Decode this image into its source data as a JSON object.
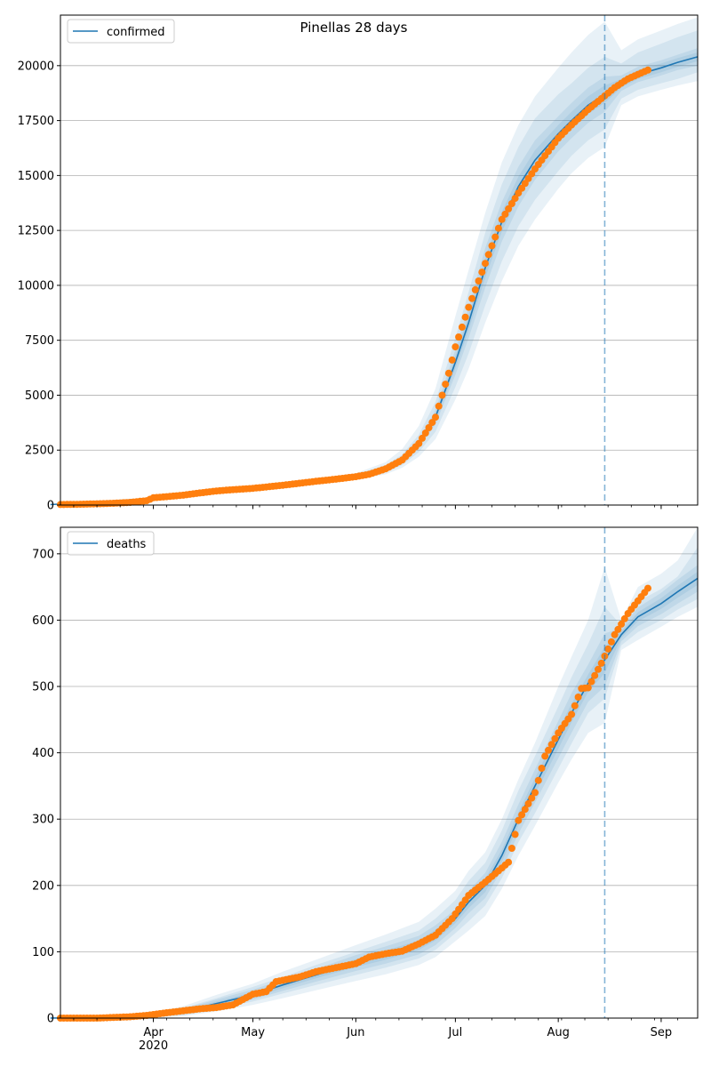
{
  "figure": {
    "title": "Pinellas 28 days"
  },
  "chart_data": [
    {
      "type": "line",
      "panel": "top",
      "legend": {
        "label": "confirmed",
        "placement": "top-left"
      },
      "ylim": [
        0,
        22300
      ],
      "yticks": [
        0,
        2500,
        5000,
        7500,
        10000,
        12500,
        15000,
        17500,
        20000
      ],
      "ytick_labels": [
        "0",
        "2500",
        "5000",
        "7500",
        "10000",
        "12500",
        "15000",
        "17500",
        "20000"
      ],
      "grid": "horizontal",
      "forecast_start": "2020-08-15",
      "observed": {
        "color": "#ff7f0e",
        "x": [
          "2020-03-01",
          "2020-03-05",
          "2020-03-10",
          "2020-03-15",
          "2020-03-20",
          "2020-03-25",
          "2020-03-30",
          "2020-04-01",
          "2020-04-05",
          "2020-04-10",
          "2020-04-15",
          "2020-04-20",
          "2020-04-25",
          "2020-05-01",
          "2020-05-10",
          "2020-05-20",
          "2020-05-25",
          "2020-06-01",
          "2020-06-05",
          "2020-06-10",
          "2020-06-15",
          "2020-06-20",
          "2020-06-25",
          "2020-06-29",
          "2020-07-01",
          "2020-07-05",
          "2020-07-10",
          "2020-07-15",
          "2020-07-20",
          "2020-07-25",
          "2020-08-01",
          "2020-08-05",
          "2020-08-10",
          "2020-08-14",
          "2020-08-18",
          "2020-08-22",
          "2020-08-28"
        ],
        "y": [
          20,
          25,
          35,
          55,
          80,
          120,
          200,
          330,
          380,
          450,
          550,
          640,
          700,
          760,
          900,
          1080,
          1160,
          1290,
          1400,
          1650,
          2050,
          2800,
          4000,
          6000,
          7200,
          9000,
          11000,
          13000,
          14200,
          15300,
          16700,
          17300,
          18000,
          18500,
          19000,
          19400,
          19800
        ]
      },
      "forecast": {
        "color": "#1f77b4",
        "x": [
          "2020-03-01",
          "2020-04-01",
          "2020-05-01",
          "2020-06-01",
          "2020-06-10",
          "2020-06-15",
          "2020-06-20",
          "2020-06-25",
          "2020-07-01",
          "2020-07-05",
          "2020-07-10",
          "2020-07-15",
          "2020-07-20",
          "2020-07-25",
          "2020-08-01",
          "2020-08-05",
          "2020-08-10",
          "2020-08-15",
          "2020-08-20",
          "2020-08-25",
          "2020-09-01",
          "2020-09-06",
          "2020-09-12"
        ],
        "y": [
          20,
          300,
          760,
          1290,
          1650,
          2050,
          2800,
          4000,
          6500,
          8300,
          10800,
          12900,
          14500,
          15700,
          16900,
          17500,
          18200,
          18700,
          19200,
          19600,
          19900,
          20150,
          20400
        ],
        "bands": [
          {
            "opacity": 0.1,
            "lower": [
              0,
              250,
              700,
              1150,
              1400,
              1700,
              2200,
              3000,
              4800,
              6200,
              8300,
              10200,
              11800,
              13000,
              14400,
              15100,
              15800,
              16300,
              18200,
              18600,
              18900,
              19100,
              19300
            ],
            "upper": [
              40,
              350,
              820,
              1450,
              1950,
              2550,
              3600,
              5300,
              8600,
              10700,
              13300,
              15600,
              17300,
              18600,
              19900,
              20600,
              21400,
              22000,
              20700,
              21200,
              21600,
              21900,
              22200
            ]
          },
          {
            "opacity": 0.1,
            "lower": [
              5,
              265,
              715,
              1190,
              1480,
              1820,
              2410,
              3340,
              5370,
              6900,
              9100,
              11100,
              12700,
              13900,
              15200,
              15900,
              16600,
              17100,
              18500,
              18900,
              19200,
              19400,
              19700
            ],
            "upper": [
              35,
              335,
              805,
              1390,
              1820,
              2300,
              3200,
              4700,
              7600,
              9700,
              12400,
              14600,
              16300,
              17600,
              18700,
              19200,
              19900,
              20400,
              20100,
              20600,
              21000,
              21300,
              21600
            ]
          },
          {
            "opacity": 0.1,
            "lower": [
              10,
              280,
              730,
              1230,
              1560,
              1930,
              2620,
              3670,
              5930,
              7600,
              9900,
              12000,
              13600,
              14800,
              16100,
              16700,
              17400,
              17900,
              18850,
              19250,
              19550,
              19800,
              20000
            ],
            "upper": [
              30,
              320,
              790,
              1350,
              1740,
              2170,
              2980,
              4330,
              7070,
              9000,
              11700,
              13800,
              15400,
              16600,
              17700,
              18300,
              19000,
              19500,
              19550,
              19950,
              20250,
              20500,
              20800
            ]
          },
          {
            "opacity": 0.1,
            "lower": [
              15,
              290,
              745,
              1260,
              1610,
              1990,
              2710,
              3835,
              6215,
              7950,
              10350,
              12450,
              14050,
              15250,
              16500,
              17100,
              17800,
              18300,
              19000,
              19400,
              19700,
              19950,
              20200
            ],
            "upper": [
              25,
              310,
              775,
              1320,
              1690,
              2110,
              2890,
              4165,
              6785,
              8650,
              11250,
              13350,
              14950,
              16150,
              17300,
              17900,
              18600,
              19100,
              19400,
              19800,
              20100,
              20350,
              20600
            ]
          }
        ]
      }
    },
    {
      "type": "line",
      "panel": "bottom",
      "legend": {
        "label": "deaths",
        "placement": "top-left"
      },
      "ylim": [
        0,
        740
      ],
      "yticks": [
        0,
        100,
        200,
        300,
        400,
        500,
        600,
        700
      ],
      "ytick_labels": [
        "0",
        "100",
        "200",
        "300",
        "400",
        "500",
        "600",
        "700"
      ],
      "grid": "horizontal",
      "forecast_start": "2020-08-15",
      "xtick_labels": [
        "Apr\n2020",
        "May",
        "Jun",
        "Jul",
        "Aug",
        "Sep"
      ],
      "xticks": [
        "2020-04-01",
        "2020-05-01",
        "2020-06-01",
        "2020-07-01",
        "2020-08-01",
        "2020-09-01"
      ],
      "xlim": [
        "2020-03-04",
        "2020-09-12"
      ],
      "observed": {
        "color": "#ff7f0e",
        "x": [
          "2020-03-01",
          "2020-03-15",
          "2020-03-25",
          "2020-03-30",
          "2020-04-05",
          "2020-04-10",
          "2020-04-15",
          "2020-04-20",
          "2020-04-25",
          "2020-05-01",
          "2020-05-05",
          "2020-05-08",
          "2020-05-15",
          "2020-05-20",
          "2020-05-25",
          "2020-06-01",
          "2020-06-05",
          "2020-06-10",
          "2020-06-15",
          "2020-06-20",
          "2020-06-25",
          "2020-06-30",
          "2020-07-05",
          "2020-07-10",
          "2020-07-14",
          "2020-07-17",
          "2020-07-20",
          "2020-07-25",
          "2020-07-28",
          "2020-08-01",
          "2020-08-05",
          "2020-08-08",
          "2020-08-10",
          "2020-08-14",
          "2020-08-18",
          "2020-08-22",
          "2020-08-28"
        ],
        "y": [
          0,
          0,
          2,
          4,
          8,
          11,
          14,
          16,
          20,
          36,
          40,
          55,
          62,
          70,
          75,
          82,
          92,
          97,
          101,
          112,
          125,
          150,
          185,
          205,
          222,
          235,
          298,
          340,
          395,
          430,
          458,
          497,
          498,
          535,
          578,
          610,
          648
        ]
      },
      "forecast": {
        "color": "#1f77b4",
        "x": [
          "2020-03-01",
          "2020-03-20",
          "2020-04-01",
          "2020-04-10",
          "2020-04-20",
          "2020-05-01",
          "2020-05-10",
          "2020-05-20",
          "2020-06-01",
          "2020-06-10",
          "2020-06-20",
          "2020-06-25",
          "2020-07-01",
          "2020-07-05",
          "2020-07-10",
          "2020-07-15",
          "2020-07-20",
          "2020-07-25",
          "2020-08-01",
          "2020-08-05",
          "2020-08-10",
          "2020-08-15",
          "2020-08-20",
          "2020-08-25",
          "2020-09-01",
          "2020-09-06",
          "2020-09-12"
        ],
        "y": [
          0,
          1,
          4,
          10,
          22,
          35,
          50,
          65,
          83,
          95,
          110,
          125,
          150,
          175,
          200,
          245,
          300,
          350,
          420,
          460,
          505,
          540,
          578,
          605,
          625,
          643,
          663
        ],
        "bands": [
          {
            "opacity": 0.1,
            "lower": [
              0,
              0,
              1,
              3,
              10,
              20,
              30,
              42,
              56,
              66,
              80,
              92,
              116,
              132,
              154,
              195,
              245,
              290,
              355,
              390,
              430,
              445,
              555,
              570,
              590,
              605,
              620
            ],
            "upper": [
              2,
              4,
              8,
              18,
              35,
              52,
              70,
              88,
              110,
              126,
              145,
              165,
              192,
              222,
              250,
              300,
              360,
              415,
              500,
              545,
              600,
              680,
              600,
              650,
              670,
              690,
              740
            ]
          },
          {
            "opacity": 0.1,
            "lower": [
              0,
              0,
              2,
              4,
              14,
              25,
              37,
              50,
              65,
              76,
              90,
              103,
              128,
              146,
              170,
              211,
              265,
              309,
              376,
              414,
              460,
              482,
              562,
              582,
              600,
              616,
              632
            ],
            "upper": [
              1,
              3,
              7,
              15,
              30,
              47,
              62,
              80,
              100,
              115,
              132,
              150,
              178,
              207,
              234,
              283,
              343,
              395,
              470,
              514,
              564,
              620,
              592,
              628,
              647,
              666,
              710
            ]
          },
          {
            "opacity": 0.1,
            "lower": [
              0,
              0,
              2,
              6,
              16,
              28,
              41,
              55,
              71,
              82,
              96,
              110,
              136,
              158,
              181,
              224,
              278,
              325,
              392,
              430,
              477,
              500,
              568,
              591,
              609,
              625,
              643
            ],
            "upper": [
              1,
              2,
              6,
              14,
              28,
              43,
              58,
              74,
              95,
              108,
              124,
              140,
              164,
              192,
              219,
              266,
              322,
              375,
              448,
              490,
              533,
              580,
              588,
              619,
              641,
              661,
              683
            ]
          },
          {
            "opacity": 0.1,
            "lower": [
              0,
              0,
              3,
              8,
              19,
              31,
              45,
              60,
              77,
              88,
              103,
              117,
              143,
              166,
              190,
              236,
              290,
              338,
              406,
              446,
              492,
              520,
              573,
              598,
              617,
              634,
              653
            ],
            "upper": [
              0,
              2,
              5,
              12,
              25,
              39,
              55,
              70,
              89,
              102,
              117,
              133,
              157,
              184,
              210,
              254,
              310,
              362,
              434,
              474,
              518,
              560,
              583,
              612,
              633,
              652,
              673
            ]
          }
        ]
      }
    }
  ]
}
